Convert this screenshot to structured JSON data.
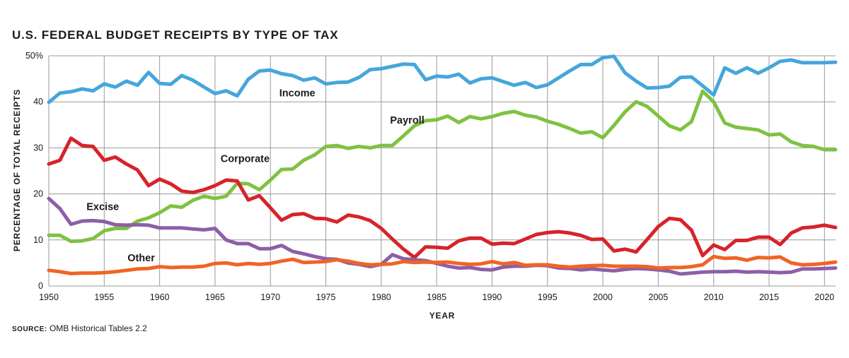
{
  "chart_data": {
    "type": "line",
    "title": "U.S. FEDERAL BUDGET RECEIPTS BY TYPE OF TAX",
    "xlabel": "YEAR",
    "ylabel": "PERCENTAGE OF TOTAL RECEIPTS",
    "xlim": [
      1950,
      2021
    ],
    "ylim": [
      0,
      50
    ],
    "x_ticks": [
      1950,
      1955,
      1960,
      1965,
      1970,
      1975,
      1980,
      1985,
      1990,
      1995,
      2000,
      2005,
      2010,
      2015,
      2020
    ],
    "x_tick_labels": [
      "1950",
      "1955",
      "1960",
      "1965",
      "1970",
      "1975",
      "1980",
      "1985",
      "1990",
      "1995",
      "2000",
      "2005",
      "2010",
      "2015",
      "2020"
    ],
    "y_ticks": [
      0,
      10,
      20,
      30,
      40,
      50
    ],
    "y_tick_labels": [
      "0",
      "10",
      "20",
      "30",
      "40",
      "50%"
    ],
    "grid": true,
    "source_label": "SOURCE:",
    "source_text": "OMB Historical Tables 2.2",
    "series": [
      {
        "name": "Income",
        "color": "#45a6dc",
        "x": [
          1950,
          1951,
          1952,
          1953,
          1954,
          1955,
          1956,
          1957,
          1958,
          1959,
          1960,
          1961,
          1962,
          1963,
          1964,
          1965,
          1966,
          1967,
          1968,
          1969,
          1970,
          1971,
          1972,
          1973,
          1974,
          1975,
          1976,
          1977,
          1978,
          1979,
          1980,
          1981,
          1982,
          1983,
          1984,
          1985,
          1986,
          1987,
          1988,
          1989,
          1990,
          1991,
          1992,
          1993,
          1994,
          1995,
          1996,
          1997,
          1998,
          1999,
          2000,
          2001,
          2002,
          2003,
          2004,
          2005,
          2006,
          2007,
          2008,
          2009,
          2010,
          2011,
          2012,
          2013,
          2014,
          2015,
          2016,
          2017,
          2018,
          2019,
          2020,
          2021
        ],
        "values": [
          39.9,
          41.9,
          42.2,
          42.8,
          42.4,
          43.9,
          43.2,
          44.5,
          43.6,
          46.4,
          44.0,
          43.8,
          45.7,
          44.7,
          43.2,
          41.8,
          42.4,
          41.3,
          44.9,
          46.7,
          46.9,
          46.1,
          45.7,
          44.7,
          45.2,
          43.9,
          44.2,
          44.3,
          45.3,
          47.0,
          47.2,
          47.7,
          48.2,
          48.1,
          44.8,
          45.6,
          45.4,
          46.0,
          44.1,
          45.0,
          45.2,
          44.4,
          43.6,
          44.2,
          43.1,
          43.7,
          45.2,
          46.7,
          48.1,
          48.1,
          49.6,
          49.9,
          46.3,
          44.5,
          43.0,
          43.1,
          43.4,
          45.3,
          45.4,
          43.5,
          41.5,
          47.4,
          46.2,
          47.4,
          46.2,
          47.4,
          48.8,
          49.1,
          48.5,
          48.5,
          48.5,
          48.6
        ]
      },
      {
        "name": "Payroll",
        "color": "#7fc241",
        "x": [
          1950,
          1951,
          1952,
          1953,
          1954,
          1955,
          1956,
          1957,
          1958,
          1959,
          1960,
          1961,
          1962,
          1963,
          1964,
          1965,
          1966,
          1967,
          1968,
          1969,
          1970,
          1971,
          1972,
          1973,
          1974,
          1975,
          1976,
          1977,
          1978,
          1979,
          1980,
          1981,
          1982,
          1983,
          1984,
          1985,
          1986,
          1987,
          1988,
          1989,
          1990,
          1991,
          1992,
          1993,
          1994,
          1995,
          1996,
          1997,
          1998,
          1999,
          2000,
          2001,
          2002,
          2003,
          2004,
          2005,
          2006,
          2007,
          2008,
          2009,
          2010,
          2011,
          2012,
          2013,
          2014,
          2015,
          2016,
          2017,
          2018,
          2019,
          2020,
          2021
        ],
        "values": [
          11.0,
          11.0,
          9.7,
          9.8,
          10.3,
          12.0,
          12.5,
          12.5,
          14.1,
          14.8,
          15.9,
          17.4,
          17.1,
          18.6,
          19.5,
          19.0,
          19.5,
          22.3,
          22.2,
          20.9,
          23.0,
          25.3,
          25.4,
          27.3,
          28.5,
          30.3,
          30.5,
          29.9,
          30.3,
          30.0,
          30.5,
          30.5,
          32.6,
          34.8,
          35.9,
          36.1,
          36.9,
          35.5,
          36.8,
          36.3,
          36.8,
          37.5,
          37.9,
          37.1,
          36.7,
          35.8,
          35.1,
          34.2,
          33.2,
          33.5,
          32.2,
          34.9,
          37.8,
          40.0,
          39.0,
          36.9,
          34.8,
          33.9,
          35.7,
          42.3,
          40.0,
          35.4,
          34.5,
          34.2,
          33.9,
          32.8,
          33.0,
          31.3,
          30.5,
          30.3,
          29.6,
          29.6
        ]
      },
      {
        "name": "Corporate",
        "color": "#d7232b",
        "x": [
          1950,
          1951,
          1952,
          1953,
          1954,
          1955,
          1956,
          1957,
          1958,
          1959,
          1960,
          1961,
          1962,
          1963,
          1964,
          1965,
          1966,
          1967,
          1968,
          1969,
          1970,
          1971,
          1972,
          1973,
          1974,
          1975,
          1976,
          1977,
          1978,
          1979,
          1980,
          1981,
          1982,
          1983,
          1984,
          1985,
          1986,
          1987,
          1988,
          1989,
          1990,
          1991,
          1992,
          1993,
          1994,
          1995,
          1996,
          1997,
          1998,
          1999,
          2000,
          2001,
          2002,
          2003,
          2004,
          2005,
          2006,
          2007,
          2008,
          2009,
          2010,
          2011,
          2012,
          2013,
          2014,
          2015,
          2016,
          2017,
          2018,
          2019,
          2020,
          2021
        ],
        "values": [
          26.5,
          27.3,
          32.1,
          30.5,
          30.3,
          27.3,
          28.0,
          26.5,
          25.2,
          21.8,
          23.2,
          22.2,
          20.6,
          20.3,
          20.9,
          21.8,
          23.0,
          22.8,
          18.7,
          19.6,
          17.0,
          14.3,
          15.5,
          15.7,
          14.7,
          14.6,
          13.9,
          15.4,
          15.0,
          14.2,
          12.5,
          10.2,
          8.0,
          6.2,
          8.5,
          8.4,
          8.2,
          9.8,
          10.4,
          10.4,
          9.1,
          9.3,
          9.2,
          10.2,
          11.2,
          11.6,
          11.8,
          11.5,
          11.0,
          10.1,
          10.2,
          7.6,
          8.0,
          7.4,
          10.1,
          12.9,
          14.7,
          14.4,
          12.1,
          6.6,
          8.9,
          7.9,
          9.9,
          9.9,
          10.6,
          10.6,
          9.0,
          11.5,
          12.6,
          12.8,
          13.2,
          12.7
        ]
      },
      {
        "name": "Excise",
        "color": "#8e5ea7",
        "x": [
          1950,
          1951,
          1952,
          1953,
          1954,
          1955,
          1956,
          1957,
          1958,
          1959,
          1960,
          1961,
          1962,
          1963,
          1964,
          1965,
          1966,
          1967,
          1968,
          1969,
          1970,
          1971,
          1972,
          1973,
          1974,
          1975,
          1976,
          1977,
          1978,
          1979,
          1980,
          1981,
          1982,
          1983,
          1984,
          1985,
          1986,
          1987,
          1988,
          1989,
          1990,
          1991,
          1992,
          1993,
          1994,
          1995,
          1996,
          1997,
          1998,
          1999,
          2000,
          2001,
          2002,
          2003,
          2004,
          2005,
          2006,
          2007,
          2008,
          2009,
          2010,
          2011,
          2012,
          2013,
          2014,
          2015,
          2016,
          2017,
          2018,
          2019,
          2020,
          2021
        ],
        "values": [
          19.0,
          16.8,
          13.4,
          14.1,
          14.2,
          14.0,
          13.3,
          13.2,
          13.3,
          13.2,
          12.6,
          12.6,
          12.6,
          12.4,
          12.2,
          12.5,
          10.0,
          9.2,
          9.2,
          8.1,
          8.1,
          8.8,
          7.5,
          7.0,
          6.4,
          5.9,
          5.8,
          5.0,
          4.7,
          4.2,
          4.7,
          6.8,
          5.9,
          5.7,
          5.5,
          4.9,
          4.3,
          3.9,
          4.0,
          3.6,
          3.5,
          4.1,
          4.3,
          4.3,
          4.5,
          4.4,
          3.9,
          3.8,
          3.5,
          3.7,
          3.5,
          3.3,
          3.6,
          3.8,
          3.7,
          3.5,
          3.2,
          2.6,
          2.8,
          3.0,
          3.1,
          3.1,
          3.2,
          3.0,
          3.1,
          3.0,
          2.9,
          3.0,
          3.7,
          3.7,
          3.8,
          3.9
        ]
      },
      {
        "name": "Other",
        "color": "#f06424",
        "x": [
          1950,
          1951,
          1952,
          1953,
          1954,
          1955,
          1956,
          1957,
          1958,
          1959,
          1960,
          1961,
          1962,
          1963,
          1964,
          1965,
          1966,
          1967,
          1968,
          1969,
          1970,
          1971,
          1972,
          1973,
          1974,
          1975,
          1976,
          1977,
          1978,
          1979,
          1980,
          1981,
          1982,
          1983,
          1984,
          1985,
          1986,
          1987,
          1988,
          1989,
          1990,
          1991,
          1992,
          1993,
          1994,
          1995,
          1996,
          1997,
          1998,
          1999,
          2000,
          2001,
          2002,
          2003,
          2004,
          2005,
          2006,
          2007,
          2008,
          2009,
          2010,
          2011,
          2012,
          2013,
          2014,
          2015,
          2016,
          2017,
          2018,
          2019,
          2020,
          2021
        ],
        "values": [
          3.4,
          3.1,
          2.7,
          2.8,
          2.8,
          2.9,
          3.1,
          3.4,
          3.7,
          3.8,
          4.2,
          4.0,
          4.1,
          4.1,
          4.3,
          4.9,
          5.0,
          4.6,
          4.9,
          4.7,
          4.9,
          5.4,
          5.8,
          5.1,
          5.2,
          5.3,
          5.7,
          5.4,
          4.9,
          4.6,
          4.7,
          4.8,
          5.3,
          5.1,
          5.2,
          5.1,
          5.2,
          4.9,
          4.7,
          4.8,
          5.3,
          4.8,
          5.1,
          4.5,
          4.6,
          4.6,
          4.3,
          4.1,
          4.3,
          4.4,
          4.5,
          4.3,
          4.3,
          4.3,
          4.2,
          3.9,
          4.0,
          4.0,
          4.2,
          4.6,
          6.4,
          6.0,
          6.1,
          5.6,
          6.2,
          6.1,
          6.3,
          5.0,
          4.6,
          4.7,
          4.9,
          5.2
        ]
      }
    ],
    "annotations": [
      {
        "series": "Income",
        "text": "Income",
        "x": 1970.8,
        "y": 41.2
      },
      {
        "series": "Payroll",
        "text": "Payroll",
        "x": 1980.8,
        "y": 35.3
      },
      {
        "series": "Corporate",
        "text": "Corporate",
        "x": 1965.5,
        "y": 26.9
      },
      {
        "series": "Excise",
        "text": "Excise",
        "x": 1953.4,
        "y": 16.5
      },
      {
        "series": "Other",
        "text": "Other",
        "x": 1957.1,
        "y": 5.4
      }
    ]
  }
}
